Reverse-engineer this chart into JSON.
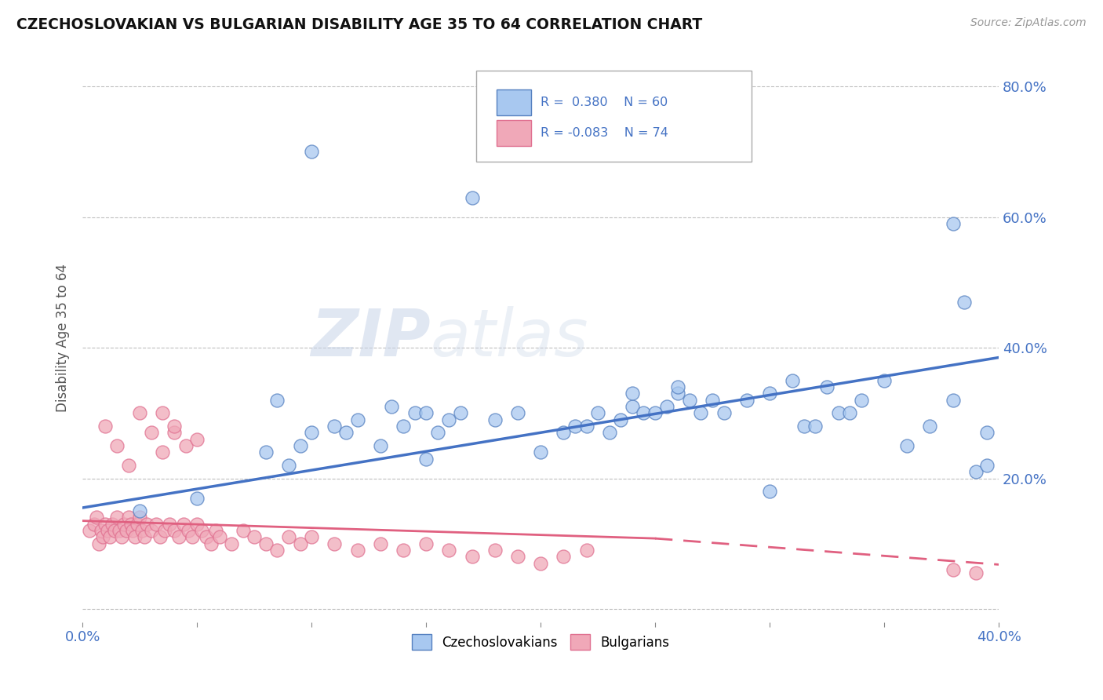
{
  "title": "CZECHOSLOVAKIAN VS BULGARIAN DISABILITY AGE 35 TO 64 CORRELATION CHART",
  "source": "Source: ZipAtlas.com",
  "ylabel": "Disability Age 35 to 64",
  "xlim": [
    0.0,
    0.4
  ],
  "ylim": [
    -0.02,
    0.85
  ],
  "czecho_color": "#a8c8f0",
  "bulgar_color": "#f0a8b8",
  "czecho_edge": "#5580c0",
  "bulgar_edge": "#e07090",
  "trend_czecho_color": "#4472c4",
  "trend_bulgar_solid_color": "#e06080",
  "trend_bulgar_dash_color": "#e06080",
  "background_color": "#ffffff",
  "grid_color": "#b0b0b0",
  "czecho_trend_x0": 0.0,
  "czecho_trend_y0": 0.155,
  "czecho_trend_x1": 0.4,
  "czecho_trend_y1": 0.385,
  "bulgar_trend_solid_x0": 0.0,
  "bulgar_trend_solid_y0": 0.135,
  "bulgar_trend_solid_x1": 0.25,
  "bulgar_trend_solid_y1": 0.108,
  "bulgar_trend_dash_x0": 0.25,
  "bulgar_trend_dash_y0": 0.108,
  "bulgar_trend_dash_x1": 0.4,
  "bulgar_trend_dash_y1": 0.068,
  "czecho_scatter_x": [
    0.025,
    0.085,
    0.095,
    0.1,
    0.11,
    0.115,
    0.12,
    0.13,
    0.135,
    0.14,
    0.145,
    0.15,
    0.155,
    0.16,
    0.165,
    0.17,
    0.18,
    0.19,
    0.2,
    0.21,
    0.215,
    0.22,
    0.225,
    0.23,
    0.235,
    0.24,
    0.245,
    0.25,
    0.255,
    0.26,
    0.265,
    0.27,
    0.275,
    0.28,
    0.29,
    0.3,
    0.31,
    0.315,
    0.32,
    0.325,
    0.33,
    0.335,
    0.34,
    0.35,
    0.36,
    0.37,
    0.38,
    0.385,
    0.39,
    0.395,
    0.1,
    0.08,
    0.09,
    0.24,
    0.26,
    0.38,
    0.3,
    0.395,
    0.15,
    0.05
  ],
  "czecho_scatter_y": [
    0.15,
    0.32,
    0.25,
    0.27,
    0.28,
    0.27,
    0.29,
    0.25,
    0.31,
    0.28,
    0.3,
    0.3,
    0.27,
    0.29,
    0.3,
    0.63,
    0.29,
    0.3,
    0.24,
    0.27,
    0.28,
    0.28,
    0.3,
    0.27,
    0.29,
    0.31,
    0.3,
    0.3,
    0.31,
    0.33,
    0.32,
    0.3,
    0.32,
    0.3,
    0.32,
    0.33,
    0.35,
    0.28,
    0.28,
    0.34,
    0.3,
    0.3,
    0.32,
    0.35,
    0.25,
    0.28,
    0.32,
    0.47,
    0.21,
    0.22,
    0.7,
    0.24,
    0.22,
    0.33,
    0.34,
    0.59,
    0.18,
    0.27,
    0.23,
    0.17
  ],
  "bulgar_scatter_x": [
    0.003,
    0.005,
    0.006,
    0.007,
    0.008,
    0.009,
    0.01,
    0.011,
    0.012,
    0.013,
    0.014,
    0.015,
    0.016,
    0.017,
    0.018,
    0.019,
    0.02,
    0.021,
    0.022,
    0.023,
    0.024,
    0.025,
    0.026,
    0.027,
    0.028,
    0.03,
    0.032,
    0.034,
    0.036,
    0.038,
    0.04,
    0.042,
    0.044,
    0.046,
    0.048,
    0.05,
    0.052,
    0.054,
    0.056,
    0.058,
    0.06,
    0.065,
    0.07,
    0.075,
    0.08,
    0.085,
    0.09,
    0.095,
    0.1,
    0.11,
    0.12,
    0.13,
    0.14,
    0.15,
    0.16,
    0.17,
    0.18,
    0.19,
    0.2,
    0.21,
    0.22,
    0.035,
    0.04,
    0.045,
    0.05,
    0.38,
    0.39,
    0.01,
    0.015,
    0.02,
    0.025,
    0.03,
    0.035,
    0.04
  ],
  "bulgar_scatter_y": [
    0.12,
    0.13,
    0.14,
    0.1,
    0.12,
    0.11,
    0.13,
    0.12,
    0.11,
    0.13,
    0.12,
    0.14,
    0.12,
    0.11,
    0.13,
    0.12,
    0.14,
    0.13,
    0.12,
    0.11,
    0.13,
    0.14,
    0.12,
    0.11,
    0.13,
    0.12,
    0.13,
    0.11,
    0.12,
    0.13,
    0.12,
    0.11,
    0.13,
    0.12,
    0.11,
    0.13,
    0.12,
    0.11,
    0.1,
    0.12,
    0.11,
    0.1,
    0.12,
    0.11,
    0.1,
    0.09,
    0.11,
    0.1,
    0.11,
    0.1,
    0.09,
    0.1,
    0.09,
    0.1,
    0.09,
    0.08,
    0.09,
    0.08,
    0.07,
    0.08,
    0.09,
    0.3,
    0.27,
    0.25,
    0.26,
    0.06,
    0.055,
    0.28,
    0.25,
    0.22,
    0.3,
    0.27,
    0.24,
    0.28
  ]
}
